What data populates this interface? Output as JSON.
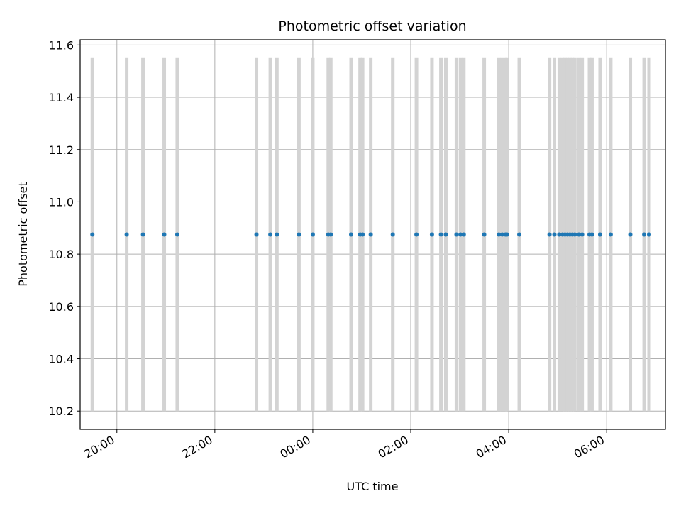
{
  "chart_data": {
    "type": "scatter",
    "title": "Photometric offset variation",
    "xlabel": "UTC time",
    "ylabel": "Photometric offset",
    "xlim": [
      "19:15",
      "07:12"
    ],
    "ylim": [
      10.13,
      11.62
    ],
    "grid": true,
    "x_ticks": [
      "20:00",
      "22:00",
      "00:00",
      "02:00",
      "04:00",
      "06:00"
    ],
    "y_ticks": [
      "10.2",
      "10.4",
      "10.6",
      "10.8",
      "11.0",
      "11.2",
      "11.4",
      "11.6"
    ],
    "colors": {
      "points": "#1f77b4",
      "bands": "#d3d3d3",
      "grid": "#b0b0b0"
    },
    "band_range": [
      10.2,
      11.55
    ],
    "x": [
      "19:30",
      "20:12",
      "20:32",
      "20:58",
      "21:14",
      "22:51",
      "23:08",
      "23:16",
      "23:43",
      "24:00",
      "24:19",
      "24:22",
      "24:47",
      "24:58",
      "25:01",
      "25:11",
      "25:38",
      "26:07",
      "26:26",
      "26:37",
      "26:43",
      "26:56",
      "27:01",
      "27:05",
      "27:30",
      "27:48",
      "27:52",
      "27:56",
      "27:58",
      "28:13",
      "28:50",
      "28:56",
      "29:02",
      "29:06",
      "29:09",
      "29:12",
      "29:15",
      "29:18",
      "29:21",
      "29:26",
      "29:30",
      "29:39",
      "29:42",
      "29:52",
      "30:05",
      "30:29",
      "30:46",
      "30:52"
    ],
    "y": [
      10.875,
      10.875,
      10.875,
      10.875,
      10.875,
      10.875,
      10.875,
      10.875,
      10.875,
      10.875,
      10.875,
      10.875,
      10.875,
      10.875,
      10.875,
      10.875,
      10.875,
      10.875,
      10.875,
      10.875,
      10.875,
      10.875,
      10.875,
      10.875,
      10.875,
      10.875,
      10.875,
      10.875,
      10.875,
      10.875,
      10.875,
      10.875,
      10.875,
      10.875,
      10.875,
      10.875,
      10.875,
      10.875,
      10.875,
      10.875,
      10.875,
      10.875,
      10.875,
      10.875,
      10.875,
      10.875,
      10.875,
      10.875
    ],
    "series": [
      {
        "values_ref": "y"
      }
    ]
  }
}
